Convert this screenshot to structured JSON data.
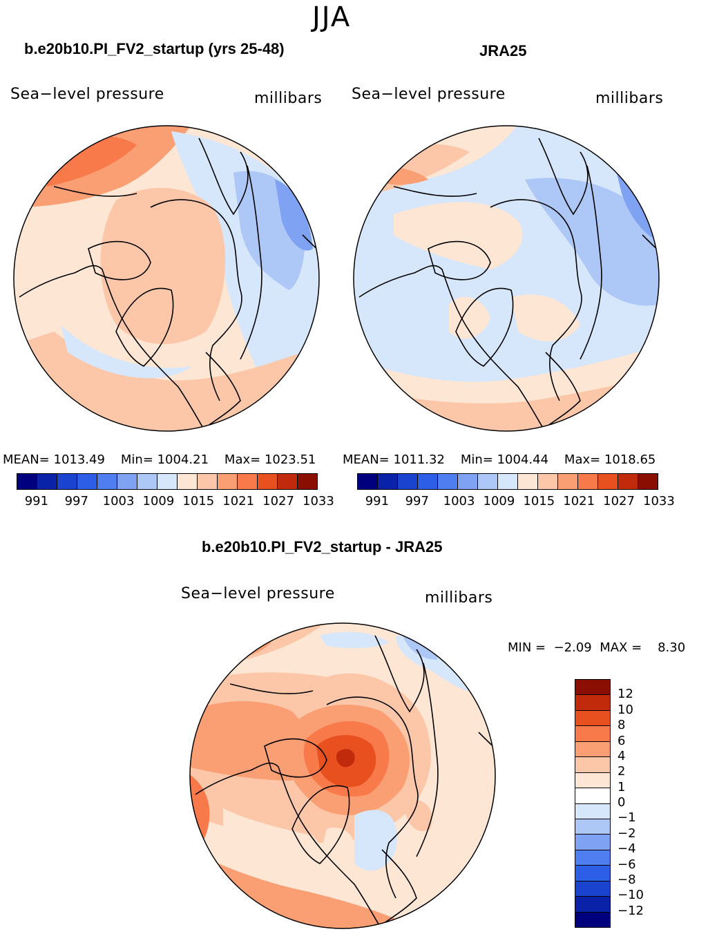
{
  "season": "JJA",
  "panels": [
    {
      "title": "b.e20b10.PI_FV2_startup (yrs 25-48)",
      "variable": "Sea−level pressure",
      "units": "millibars",
      "stats": {
        "mean_label": "MEAN=",
        "mean": "1013.49",
        "min_label": "Min=",
        "min": "1004.21",
        "max_label": "Max=",
        "max": "1023.51"
      }
    },
    {
      "title": "JRA25",
      "variable": "Sea−level pressure",
      "units": "millibars",
      "stats": {
        "mean_label": "MEAN=",
        "mean": "1011.32",
        "min_label": "Min=",
        "min": "1004.44",
        "max_label": "Max=",
        "max": "1018.65"
      }
    }
  ],
  "abs_colorbar": {
    "colors": [
      "#00007f",
      "#0a22a8",
      "#1a44d0",
      "#2c5ee8",
      "#4f7ef0",
      "#7fa2f2",
      "#adc8f6",
      "#d6e6fb",
      "#fde6d4",
      "#fcc7a8",
      "#fa9e74",
      "#f87a4a",
      "#e8501f",
      "#c22a0c",
      "#8a0f02"
    ],
    "labels": [
      "991",
      "997",
      "1003",
      "1009",
      "1015",
      "1021",
      "1027",
      "1033"
    ]
  },
  "diff_panel": {
    "title": "b.e20b10.PI_FV2_startup - JRA25",
    "variable": "Sea−level pressure",
    "units": "millibars",
    "min_label": "MIN =",
    "min": "−2.09",
    "max_label": "MAX =",
    "max": "8.30"
  },
  "diff_colorbar": {
    "colors": [
      "#8a0f02",
      "#c22a0c",
      "#e8501f",
      "#f87a4a",
      "#fa9e74",
      "#fcc7a8",
      "#fde6d4",
      "#ffffff",
      "#d6e6fb",
      "#adc8f6",
      "#7fa2f2",
      "#4f7ef0",
      "#2c5ee8",
      "#1a44d0",
      "#0a22a8",
      "#00007f"
    ],
    "labels": [
      "12",
      "10",
      "8",
      "6",
      "4",
      "2",
      "1",
      "0",
      "−1",
      "−2",
      "−4",
      "−6",
      "−8",
      "−10",
      "−12"
    ]
  }
}
